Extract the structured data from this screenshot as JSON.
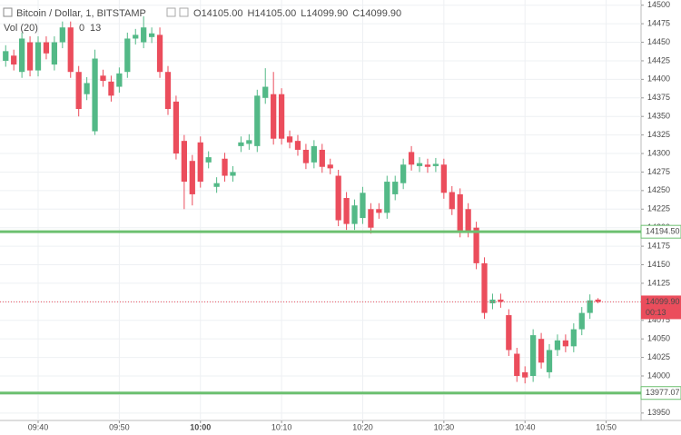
{
  "chart_data": {
    "type": "candlestick",
    "header": {
      "symbol": "Bitcoin / Dollar, 1, BITSTAMP",
      "ohlc": [
        {
          "key": "O",
          "value": "14105.00"
        },
        {
          "key": "H",
          "value": "14105.00"
        },
        {
          "key": "L",
          "value": "14099.90"
        },
        {
          "key": "C",
          "value": "14099.90"
        }
      ],
      "volume_label": "Vol (20)",
      "volume_values": [
        "0",
        "13"
      ]
    },
    "x": [
      576,
      577,
      578,
      579,
      580,
      581,
      582,
      583,
      584,
      585,
      586,
      587,
      588,
      589,
      590,
      591,
      592,
      593,
      594,
      595,
      596,
      597,
      598,
      599,
      600,
      601,
      602,
      603,
      604,
      605,
      606,
      607,
      608,
      609,
      610,
      611,
      612,
      613,
      614,
      615,
      616,
      617,
      618,
      619,
      620,
      621,
      622,
      623,
      624,
      625,
      626,
      627,
      628,
      629,
      630,
      631,
      632,
      633,
      634,
      635,
      636,
      637,
      638,
      639,
      640,
      641,
      642,
      643,
      644,
      645,
      646,
      647,
      648,
      649
    ],
    "open": [
      14425,
      14432,
      14410,
      14450,
      14412,
      14450,
      14420,
      14450,
      14470,
      14410,
      14380,
      14330,
      14405,
      14397,
      14390,
      14410,
      14455,
      14450,
      14457,
      14460,
      14410,
      14370,
      14317,
      14290,
      14315,
      14288,
      14255,
      14293,
      14270,
      14310,
      14313,
      14310,
      14375,
      14380,
      14380,
      14323,
      14317,
      14305,
      14288,
      14305,
      14285,
      14270,
      14240,
      14205,
      14213,
      14225,
      14225,
      14220,
      14245,
      14260,
      14302,
      14283,
      14285,
      14283,
      14285,
      14248,
      14245,
      14225,
      14200,
      14152,
      14098,
      14103,
      14082,
      14030,
      14005,
      14000,
      14050,
      14005,
      14035,
      14048,
      14040,
      14063,
      14085,
      14103
    ],
    "high": [
      14446,
      14440,
      14463,
      14458,
      14458,
      14458,
      14458,
      14478,
      14478,
      14418,
      14403,
      14440,
      14413,
      14405,
      14416,
      14463,
      14468,
      14485,
      14470,
      14470,
      14418,
      14378,
      14325,
      14298,
      14323,
      14303,
      14268,
      14301,
      14283,
      14323,
      14326,
      14386,
      14415,
      14410,
      14388,
      14331,
      14325,
      14313,
      14318,
      14313,
      14293,
      14278,
      14248,
      14238,
      14255,
      14233,
      14233,
      14270,
      14270,
      14293,
      14310,
      14295,
      14293,
      14294,
      14293,
      14256,
      14253,
      14233,
      14208,
      14160,
      14111,
      14111,
      14090,
      14038,
      14013,
      14063,
      14058,
      14043,
      14056,
      14056,
      14071,
      14093,
      14110,
      14105
    ],
    "low": [
      14417,
      14412,
      14402,
      14404,
      14404,
      14427,
      14412,
      14442,
      14402,
      14350,
      14372,
      14325,
      14390,
      14370,
      14382,
      14402,
      14447,
      14442,
      14449,
      14402,
      14352,
      14292,
      14225,
      14230,
      14254,
      14280,
      14247,
      14262,
      14262,
      14302,
      14305,
      14302,
      14367,
      14312,
      14312,
      14307,
      14297,
      14279,
      14280,
      14274,
      14272,
      14202,
      14197,
      14197,
      14205,
      14192,
      14212,
      14212,
      14237,
      14252,
      14277,
      14275,
      14274,
      14275,
      14239,
      14217,
      14187,
      14187,
      14144,
      14077,
      14090,
      14092,
      14027,
      13992,
      13990,
      13992,
      14010,
      13997,
      14027,
      14032,
      14032,
      14055,
      14077,
      14098
    ],
    "close": [
      14438,
      14420,
      14455,
      14412,
      14450,
      14435,
      14450,
      14470,
      14410,
      14360,
      14395,
      14428,
      14398,
      14378,
      14408,
      14455,
      14460,
      14470,
      14462,
      14410,
      14360,
      14300,
      14262,
      14245,
      14262,
      14295,
      14260,
      14270,
      14275,
      14315,
      14318,
      14378,
      14390,
      14320,
      14320,
      14315,
      14305,
      14287,
      14310,
      14282,
      14280,
      14210,
      14205,
      14230,
      14247,
      14200,
      14220,
      14262,
      14262,
      14285,
      14285,
      14287,
      14282,
      14286,
      14247,
      14225,
      14195,
      14195,
      14152,
      14085,
      14103,
      14100,
      14035,
      14000,
      13998,
      14055,
      14018,
      14035,
      14048,
      14040,
      14063,
      14085,
      14102,
      14099.9
    ],
    "up_color": "#53b987",
    "down_color": "#eb4d5c",
    "xlim": [
      575.3,
      654.3
    ],
    "xticks": [
      {
        "value": 580,
        "label": "09:40"
      },
      {
        "value": 590,
        "label": "09:50"
      },
      {
        "value": 600,
        "label": "10:00"
      },
      {
        "value": 610,
        "label": "10:10"
      },
      {
        "value": 620,
        "label": "10:20"
      },
      {
        "value": 630,
        "label": "10:30"
      },
      {
        "value": 640,
        "label": "10:40"
      },
      {
        "value": 650,
        "label": "10:50"
      }
    ],
    "ylim": [
      13940,
      14507
    ],
    "yticks": [
      13950,
      13975,
      14000,
      14025,
      14050,
      14075,
      14100,
      14125,
      14150,
      14175,
      14200,
      14225,
      14250,
      14275,
      14300,
      14325,
      14350,
      14375,
      14400,
      14425,
      14450,
      14475,
      14500
    ],
    "grid": true,
    "hlines": [
      {
        "value": 14194.5,
        "label": "14194.50",
        "color": "#6cc070"
      },
      {
        "value": 13977.07,
        "label": "13977.07",
        "color": "#6cc070"
      }
    ],
    "last_price": {
      "value": 14099.9,
      "label": "14099.90",
      "countdown": "00:13",
      "color": "#eb4d5c"
    }
  }
}
